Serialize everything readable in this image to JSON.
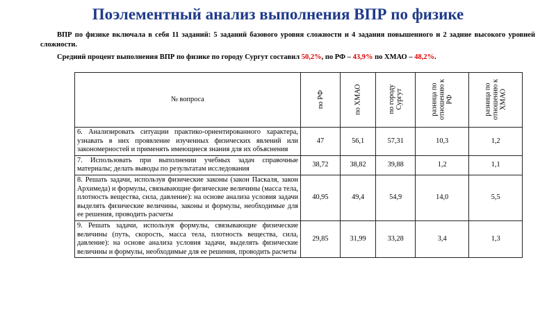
{
  "title": "Поэлементный анализ выполнения ВПР по физике",
  "intro": "ВПР по физике включала в себя 11 заданий: 5 заданий базового уровня сложности и 4 задания повышенного и 2 задние высокого уровней сложности.",
  "summary": {
    "text": "Средний процент выполнения ВПР по физике по городу Сургут составил ",
    "surgut": "50,2%",
    "mid1": ", по РФ – ",
    "rf": "43,9%",
    "mid2": " по ХМАО – ",
    "khmao": "48,2%",
    "end": "."
  },
  "table": {
    "headers": [
      "№ вопроса",
      "по РФ",
      "по ХМАО",
      "по городу Сургут",
      "разница по отношению к РФ",
      "разница по отношению к ХМАО"
    ],
    "rows": [
      {
        "q": "6. Анализировать ситуации практико-ориентированного характера, узнавать в них проявление изученных физических явлений или закономерностей и применять имеющиеся знания для их объяснения",
        "rf": "47",
        "khmao": "56,1",
        "surgut": "57,31",
        "diff_rf": "10,3",
        "diff_khmao": "1,2"
      },
      {
        "q": "7. Использовать при выполнении учебных задач справочные материалы; делать выводы по результатам исследования",
        "rf": "38,72",
        "khmao": "38,82",
        "surgut": "39,88",
        "diff_rf": "1,2",
        "diff_khmao": "1,1"
      },
      {
        "q": "8. Решать задачи, используя физические законы (закон Паскаля, закон Архимеда) и формулы, связывающие физические величины (масса тела, плотность вещества, сила, давление): на основе анализа условия задачи выделять физические величины, законы и формулы, необходимые для ее решения, проводить расчеты",
        "rf": "40,95",
        "khmao": "49,4",
        "surgut": "54,9",
        "diff_rf": "14,0",
        "diff_khmao": "5,5"
      },
      {
        "q": "9. Решать задачи, используя формулы, связывающие физические величины (путь, скорость, масса тела, плотность вещества, сила, давление): на основе анализа условия задачи, выделять физические величины и формулы, необходимые для ее решения, проводить расчеты",
        "rf": "29,85",
        "khmao": "31,99",
        "surgut": "33,28",
        "diff_rf": "3,4",
        "diff_khmao": "1,3"
      }
    ]
  }
}
